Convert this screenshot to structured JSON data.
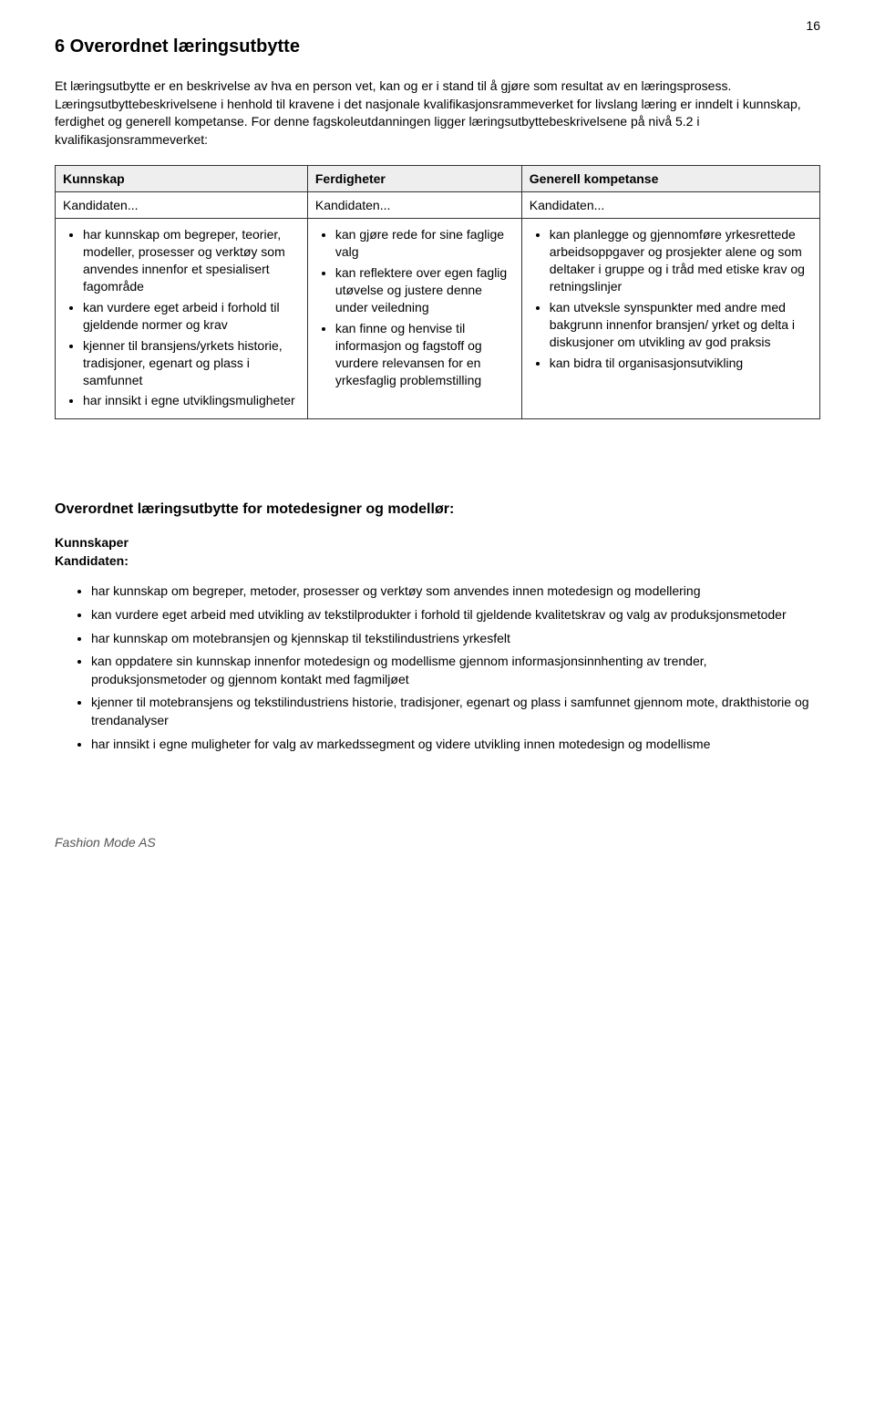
{
  "page_number": "16",
  "section_title": "6 Overordnet læringsutbytte",
  "intro_paragraph": "Et læringsutbytte er en beskrivelse av hva en person vet, kan og er i stand til å gjøre som resultat av en læringsprosess. Læringsutbyttebeskrivelsene i henhold til kravene i det nasjonale kvalifikasjonsrammeverket for livslang læring er inndelt i kunnskap, ferdighet og generell kompetanse. For denne fagskoleutdanningen ligger læringsutbyttebeskrivelsene på nivå 5.2 i kvalifikasjonsrammeverket:",
  "table": {
    "headers": [
      "Kunnskap",
      "Ferdigheter",
      "Generell kompetanse"
    ],
    "subheaders": [
      "Kandidaten...",
      "Kandidaten...",
      "Kandidaten..."
    ],
    "cols": {
      "kunnskap": [
        "har kunnskap om begreper, teorier, modeller, prosesser og verktøy som anvendes innenfor et spesialisert fagområde",
        "kan vurdere eget arbeid i forhold til gjeldende normer og krav",
        "kjenner til bransjens/yrkets historie, tradisjoner, egenart og plass i samfunnet",
        "har innsikt i egne utviklingsmuligheter"
      ],
      "ferdigheter": [
        "kan gjøre rede for sine faglige valg",
        "kan reflektere over egen faglig utøvelse og justere denne under veiledning",
        "kan finne og henvise til informasjon og fagstoff og vurdere relevansen for en yrkesfaglig problemstilling"
      ],
      "generell": [
        "kan planlegge og gjennomføre yrkesrettede arbeidsoppgaver og prosjekter alene og som deltaker i gruppe og i tråd med etiske krav og retningslinjer",
        "kan utveksle synspunkter med andre med bakgrunn innenfor bransjen/ yrket og delta i diskusjoner om utvikling av god praksis",
        "kan bidra til organisasjonsutvikling"
      ]
    }
  },
  "subsection_title": "Overordnet læringsutbytte for motedesigner og modellør:",
  "kunnskaper_label": "Kunnskaper",
  "kandidaten_label": "Kandidaten:",
  "kunnskaper_list": [
    "har kunnskap om begreper, metoder, prosesser og verktøy som anvendes innen motedesign og modellering",
    "kan vurdere eget arbeid med utvikling av tekstilprodukter i forhold til gjeldende kvalitetskrav og valg av produksjonsmetoder",
    "har kunnskap om motebransjen og kjennskap til tekstilindustriens yrkesfelt",
    "kan oppdatere sin kunnskap innenfor motedesign og modellisme gjennom informasjonsinnhenting av trender, produksjonsmetoder og gjennom kontakt med fagmiljøet",
    "kjenner til motebransjens og tekstilindustriens historie, tradisjoner, egenart og plass i samfunnet gjennom mote, drakthistorie og trendanalyser",
    "har innsikt i egne muligheter for valg av markedssegment og videre utvikling innen motedesign og modellisme"
  ],
  "footer": "Fashion Mode AS"
}
